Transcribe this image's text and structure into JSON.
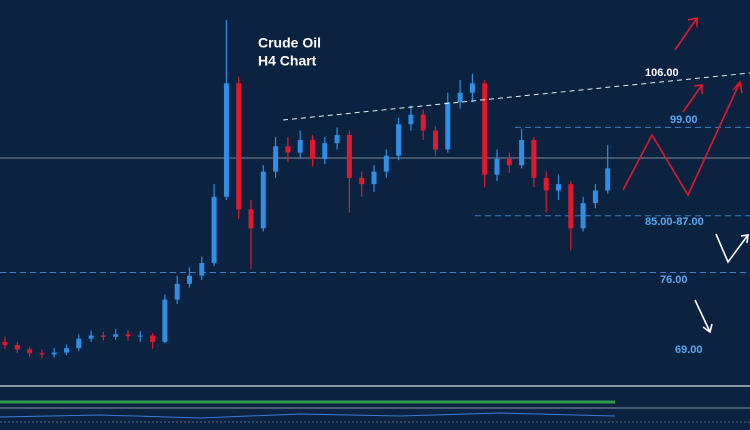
{
  "chart_data": {
    "type": "candlestick",
    "title": "Crude Oil",
    "subtitle": "H4 Chart",
    "open": [
      65,
      64.5,
      63.8,
      63.2,
      63,
      63.3,
      64,
      65.5,
      66,
      65.8,
      66.2,
      65.9,
      66,
      65,
      71.7,
      74.2,
      75.5,
      77.5,
      88,
      106,
      86,
      83,
      92,
      96,
      95,
      97,
      94,
      96.5,
      97.8,
      91,
      90,
      92,
      94.5,
      99.5,
      101,
      98.5,
      95.5,
      103,
      104.5,
      106,
      91.5,
      94,
      93,
      97,
      91,
      89,
      90,
      83,
      87,
      89
    ],
    "high": [
      65.8,
      65,
      64.2,
      63.8,
      64,
      64.6,
      66.2,
      66.8,
      66.6,
      67,
      66.8,
      66.7,
      66.4,
      72.5,
      75.5,
      76.8,
      78.5,
      90,
      116,
      107,
      87.5,
      93,
      97.5,
      97.5,
      98.5,
      97.8,
      97.5,
      99,
      98.5,
      92,
      93,
      95.5,
      100.5,
      102.5,
      101.8,
      99.2,
      104.5,
      106.5,
      107.5,
      106.5,
      95.5,
      95,
      98.8,
      97.5,
      92,
      91.5,
      90.5,
      88,
      90,
      96.2
    ],
    "low": [
      63.9,
      63.2,
      62.6,
      62.4,
      62.5,
      62.9,
      63.6,
      65,
      65.2,
      65.3,
      65.2,
      65,
      63.9,
      64.8,
      71,
      73.6,
      74.8,
      77,
      87.5,
      84.5,
      76.5,
      82.5,
      91,
      93.5,
      94,
      92.8,
      93.2,
      95.5,
      85.5,
      88,
      88.8,
      91,
      93.8,
      98.5,
      97,
      94.5,
      95,
      102,
      103,
      89.5,
      90.5,
      91.8,
      92.5,
      89.5,
      85.5,
      87.5,
      79.5,
      82.5,
      86.2,
      88.5
    ],
    "close": [
      64.5,
      63.8,
      63.2,
      63,
      63.3,
      64,
      65.5,
      66,
      65.8,
      66.2,
      65.9,
      66,
      65,
      71.7,
      74.2,
      75.5,
      77.5,
      88,
      106,
      86,
      83,
      92,
      96,
      95,
      97,
      94,
      96.5,
      97.8,
      91,
      90,
      92,
      94.5,
      99.5,
      101,
      98.5,
      95.5,
      103,
      104.5,
      106,
      91.5,
      94,
      93,
      97,
      91,
      89,
      90,
      83,
      87,
      89,
      92.5
    ],
    "ylim": [
      58,
      119.2
    ],
    "up_color": "#2f8fe6",
    "down_color": "#e3182d",
    "current_price": 94.15,
    "levels": [
      {
        "label": "106.00",
        "value": 106
      },
      {
        "label": "99.00",
        "value": 99
      },
      {
        "label": "85.00-87.00",
        "low": 85,
        "high": 87
      },
      {
        "label": "76.00",
        "value": 76
      },
      {
        "label": "69.00",
        "value": 69
      }
    ]
  }
}
